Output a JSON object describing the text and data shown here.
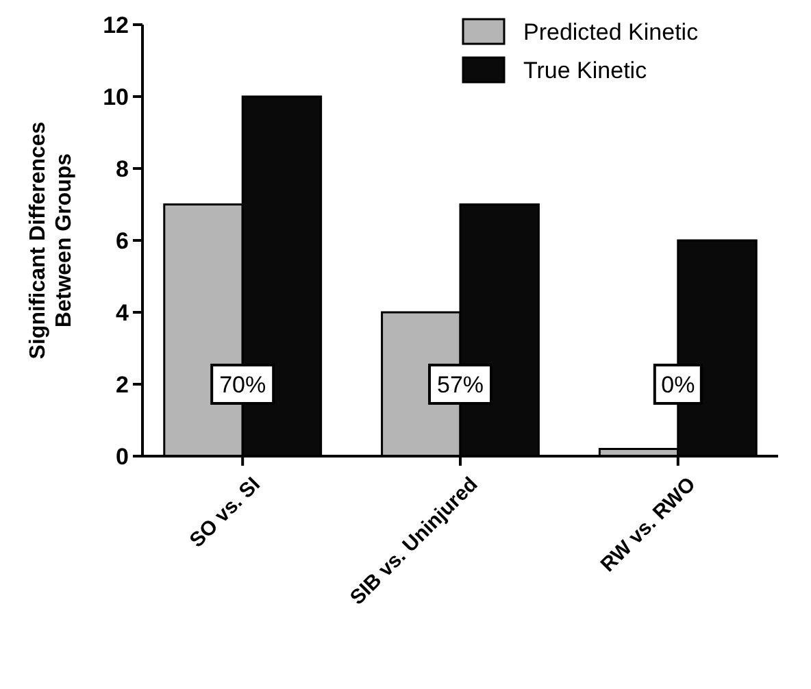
{
  "chart_data": {
    "type": "bar",
    "ylabel": "Significant Differences\nBetween Groups",
    "categories": [
      "SO vs. SI",
      "SIB vs. Uninjured",
      "RW vs. RWO"
    ],
    "series": [
      {
        "name": "Predicted Kinetic",
        "color": "#b5b5b5",
        "values": [
          7,
          4,
          0.2
        ]
      },
      {
        "name": "True Kinetic",
        "color": "#0a0a0a",
        "values": [
          10,
          7,
          6
        ]
      }
    ],
    "ylim": [
      0,
      12
    ],
    "yticks": [
      0,
      2,
      4,
      6,
      8,
      10,
      12
    ],
    "legend": "top right",
    "annotations": [
      {
        "text": "70%",
        "x": "SO vs. SI",
        "y": 2
      },
      {
        "text": "57%",
        "x": "SIB vs. Uninjured",
        "y": 2
      },
      {
        "text": "0%",
        "x": "RW vs. RWO",
        "y": 2
      }
    ]
  }
}
